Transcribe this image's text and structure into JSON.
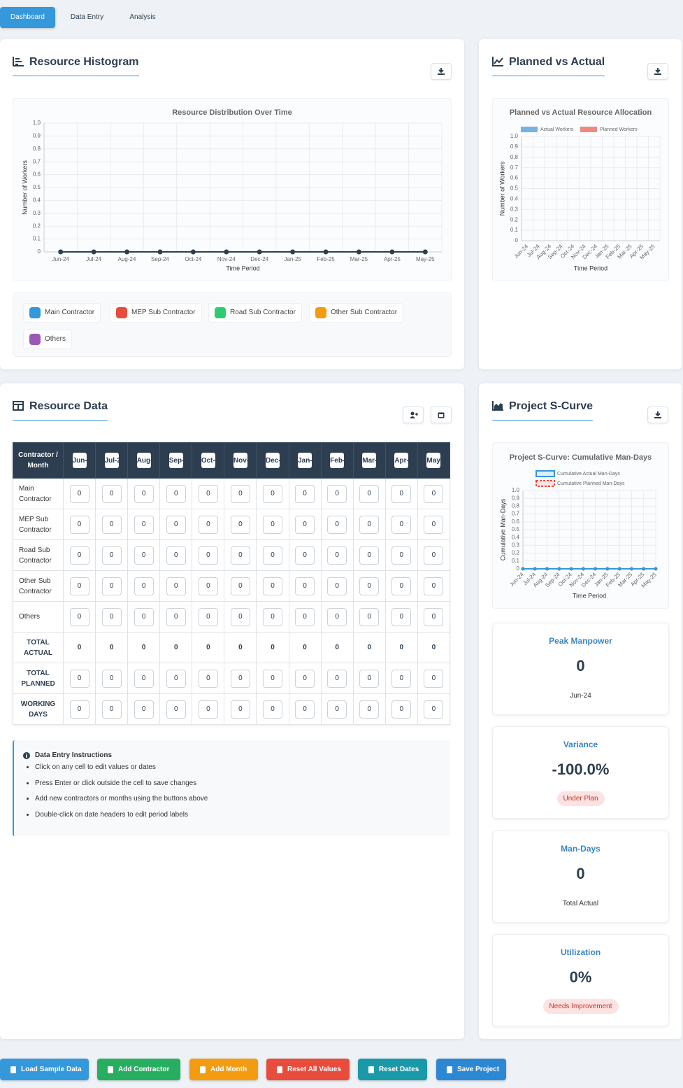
{
  "tabs": [
    "Dashboard",
    "Data Entry",
    "Analysis"
  ],
  "panels": {
    "histogram": "Resource Histogram",
    "planned_vs_actual": "Planned vs Actual",
    "resource_data": "Resource Data",
    "s_curve": "Project S-Curve"
  },
  "chart_data": [
    {
      "type": "bar",
      "stacked": true,
      "title": "Resource Distribution Over Time",
      "x_label": "Time Period",
      "y_label": "Number of Workers",
      "categories": [
        "Jun-24",
        "Jul-24",
        "Aug-24",
        "Sep-24",
        "Oct-24",
        "Nov-24",
        "Dec-24",
        "Jan-25",
        "Feb-25",
        "Mar-25",
        "Apr-25",
        "May-25"
      ],
      "ylim": [
        0,
        1
      ],
      "yticks": [
        0,
        0.1,
        0.2,
        0.3,
        0.4,
        0.5,
        0.6,
        0.7,
        0.8,
        0.9,
        {
          "value": 1,
          "label": "1.0"
        }
      ],
      "grid": true,
      "series": [
        {
          "name": "Main Contractor",
          "color": "#3498db",
          "values": [
            0,
            0,
            0,
            0,
            0,
            0,
            0,
            0,
            0,
            0,
            0,
            0
          ]
        },
        {
          "name": "MEP Sub Contractor",
          "color": "#e74c3c",
          "values": [
            0,
            0,
            0,
            0,
            0,
            0,
            0,
            0,
            0,
            0,
            0,
            0
          ]
        },
        {
          "name": "Road Sub Contractor",
          "color": "#2ecc71",
          "values": [
            0,
            0,
            0,
            0,
            0,
            0,
            0,
            0,
            0,
            0,
            0,
            0
          ]
        },
        {
          "name": "Other Sub Contractor",
          "color": "#f39c12",
          "values": [
            0,
            0,
            0,
            0,
            0,
            0,
            0,
            0,
            0,
            0,
            0,
            0
          ]
        },
        {
          "name": "Others",
          "color": "#9b59b6",
          "values": [
            0,
            0,
            0,
            0,
            0,
            0,
            0,
            0,
            0,
            0,
            0,
            0
          ]
        }
      ],
      "total_line": {
        "color": "#2c3e50",
        "values": [
          0,
          0,
          0,
          0,
          0,
          0,
          0,
          0,
          0,
          0,
          0,
          0
        ]
      }
    },
    {
      "type": "bar",
      "stacked": false,
      "title": "Planned vs Actual Resource Allocation",
      "x_label": "Time Period",
      "y_label": "Number of Workers",
      "categories": [
        "Jun-24",
        "Jul-24",
        "Aug-24",
        "Sep-24",
        "Oct-24",
        "Nov-24",
        "Dec-24",
        "Jan-25",
        "Feb-25",
        "Mar-25",
        "Apr-25",
        "May-25"
      ],
      "ylim": [
        0,
        1
      ],
      "yticks": [
        0,
        0.1,
        0.2,
        0.3,
        0.4,
        0.5,
        0.6,
        0.7,
        0.8,
        0.9,
        {
          "value": 1,
          "label": "1.0"
        }
      ],
      "grid": true,
      "series": [
        {
          "name": "Actual Workers",
          "color": "#74b3e3",
          "values": [
            0,
            0,
            0,
            0,
            0,
            0,
            0,
            0,
            0,
            0,
            0,
            0
          ]
        },
        {
          "name": "Planned Workers",
          "color": "#ec8a80",
          "values": [
            0,
            0,
            0,
            0,
            0,
            0,
            0,
            0,
            0,
            0,
            0,
            0
          ]
        }
      ]
    },
    {
      "type": "line",
      "title": "Project S-Curve: Cumulative Man-Days",
      "x_label": "Time Period",
      "y_label": "Cumulative Man-Days",
      "categories": [
        "Jun-24",
        "Jul-24",
        "Aug-24",
        "Sep-24",
        "Oct-24",
        "Nov-24",
        "Dec-24",
        "Jan-25",
        "Feb-25",
        "Mar-25",
        "Apr-25",
        "May-25"
      ],
      "ylim": [
        0,
        1
      ],
      "yticks": [
        0,
        0.1,
        0.2,
        0.3,
        0.4,
        0.5,
        0.6,
        0.7,
        0.8,
        0.9,
        {
          "value": 1,
          "label": "1.0"
        }
      ],
      "grid": true,
      "series": [
        {
          "name": "Cumulative Actual Man-Days",
          "color": "#3498db",
          "values": [
            0,
            0,
            0,
            0,
            0,
            0,
            0,
            0,
            0,
            0,
            0,
            0
          ]
        },
        {
          "name": "Cumulative Planned Man-Days",
          "color": "#e74c3c",
          "dashed": true,
          "values": [
            0,
            0,
            0,
            0,
            0,
            0,
            0,
            0,
            0,
            0,
            0,
            0
          ]
        }
      ]
    }
  ],
  "table": {
    "corner": "Contractor / Month",
    "rows": [
      {
        "label": "Main Contractor",
        "values": [
          0,
          0,
          0,
          0,
          0,
          0,
          0,
          0,
          0,
          0,
          0,
          0
        ]
      },
      {
        "label": "MEP Sub Contractor",
        "values": [
          0,
          0,
          0,
          0,
          0,
          0,
          0,
          0,
          0,
          0,
          0,
          0
        ]
      },
      {
        "label": "Road Sub Contractor",
        "values": [
          0,
          0,
          0,
          0,
          0,
          0,
          0,
          0,
          0,
          0,
          0,
          0
        ]
      },
      {
        "label": "Other Sub Contractor",
        "values": [
          0,
          0,
          0,
          0,
          0,
          0,
          0,
          0,
          0,
          0,
          0,
          0
        ]
      },
      {
        "label": "Others",
        "values": [
          0,
          0,
          0,
          0,
          0,
          0,
          0,
          0,
          0,
          0,
          0,
          0
        ]
      }
    ],
    "total_actual": {
      "label": "TOTAL ACTUAL",
      "values": [
        0,
        0,
        0,
        0,
        0,
        0,
        0,
        0,
        0,
        0,
        0,
        0
      ]
    },
    "total_planned": {
      "label": "TOTAL PLANNED",
      "values": [
        0,
        0,
        0,
        0,
        0,
        0,
        0,
        0,
        0,
        0,
        0,
        0
      ]
    },
    "working_days": {
      "label": "WORKING DAYS",
      "values": [
        0,
        0,
        0,
        0,
        0,
        0,
        0,
        0,
        0,
        0,
        0,
        0
      ]
    }
  },
  "instructions": {
    "title": "Data Entry Instructions",
    "items": [
      "Click on any cell to edit values or dates",
      "Press Enter or click outside the cell to save changes",
      "Add new contractors or months using the buttons above",
      "Double-click on date headers to edit period labels"
    ]
  },
  "stats": [
    {
      "title": "Peak Manpower",
      "value": 0,
      "note": "Jun-24"
    },
    {
      "title": "Variance",
      "value": "-100.0%",
      "badge": "Under Plan"
    },
    {
      "title": "Man-Days",
      "value": 0,
      "note": "Total Actual"
    },
    {
      "title": "Utilization",
      "value": "0%",
      "badge": "Needs Improvement"
    }
  ],
  "buttons": [
    "Load Sample Data",
    "Add Contractor",
    "Add Month",
    "Reset All Values",
    "Reset Dates",
    "Save Project"
  ]
}
